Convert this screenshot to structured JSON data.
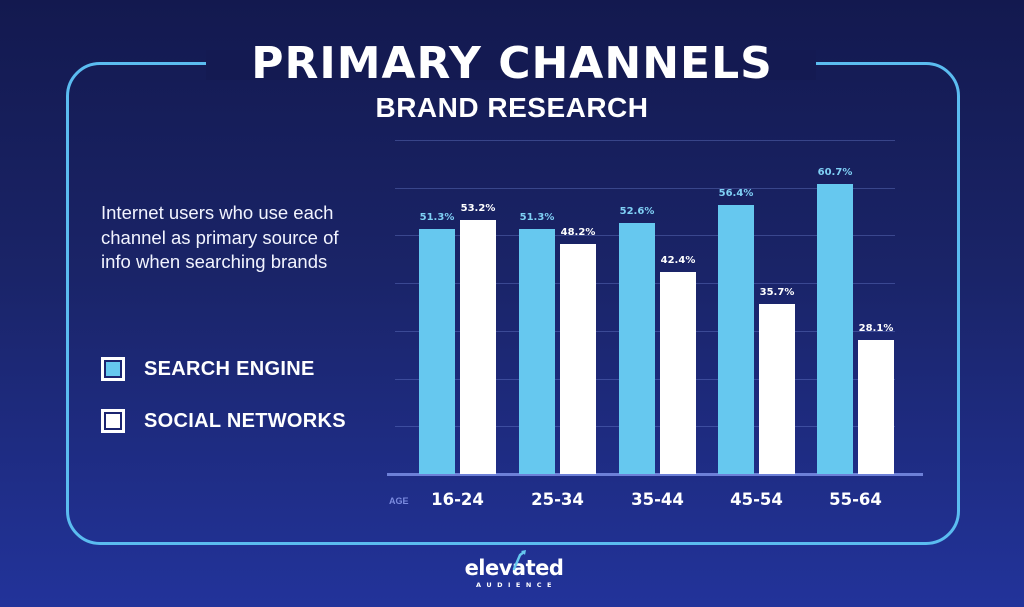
{
  "header": {
    "title": "PRIMARY CHANNELS",
    "subtitle": "BRAND RESEARCH"
  },
  "description": "Internet users who use each channel as primary source of info when searching brands",
  "legend": {
    "items": [
      {
        "label": "SEARCH ENGINE",
        "color": "#66c8ef"
      },
      {
        "label": "SOCIAL NETWORKS",
        "color": "#ffffff"
      }
    ]
  },
  "axis": {
    "x_title": "AGE"
  },
  "colors": {
    "search_engine": "#66c8ef",
    "social_networks": "#ffffff",
    "search_label": "#7fd0f5",
    "social_label": "#ffffff",
    "frame": "#5bbcf0",
    "background_top": "#13194f",
    "background_bottom": "#22339a"
  },
  "logo": {
    "word": "elevated",
    "sub": "AUDIENCE"
  },
  "chart_data": {
    "type": "bar",
    "title": "PRIMARY CHANNELS",
    "subtitle": "BRAND RESEARCH",
    "xlabel": "AGE",
    "ylabel": "",
    "categories": [
      "16-24",
      "25-34",
      "35-44",
      "45-54",
      "55-64"
    ],
    "series": [
      {
        "name": "SEARCH ENGINE",
        "values": [
          51.3,
          51.3,
          52.6,
          56.4,
          60.7
        ],
        "labels": [
          "51.3%",
          "51.3%",
          "52.6%",
          "56.4%",
          "60.7%"
        ]
      },
      {
        "name": "SOCIAL NETWORKS",
        "values": [
          53.2,
          48.2,
          42.4,
          35.7,
          28.1
        ],
        "labels": [
          "53.2%",
          "48.2%",
          "42.4%",
          "35.7%",
          "28.1%"
        ]
      }
    ],
    "ylim": [
      0,
      70
    ],
    "grid": true,
    "gridline_step": 10,
    "legend_position": "left",
    "value_suffix": "%"
  }
}
